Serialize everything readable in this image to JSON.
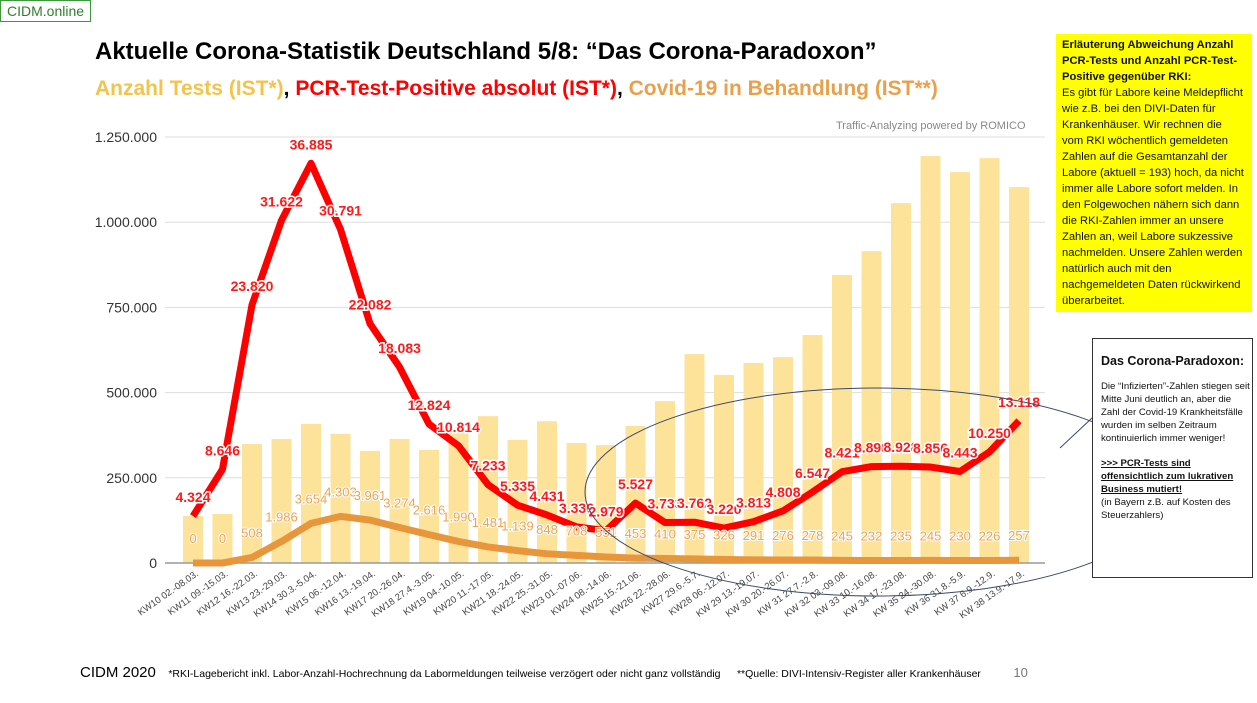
{
  "brand": "CIDM.online",
  "title": "Aktuelle Corona-Statistik Deutschland 5/8: “Das Corona-Paradoxon”",
  "subtitle": {
    "tests": "Anzahl Tests (IST*)",
    "positives": "PCR-Test-Positive absolut (IST*)",
    "treatment": "Covid-19 in Behandlung (IST**)",
    "sep": ", "
  },
  "credit": "Traffic-Analyzing powered by ROMICO",
  "note_yellow": {
    "heading": "Erläuterung Abweichung Anzahl PCR-Tests und Anzahl PCR-Test-Positive gegenüber RKI:",
    "body": "Es gibt für Labore keine Meldepflicht wie z.B. bei den DIVI-Daten für Krankenhäuser. Wir rechnen die vom RKI wöchentlich gemeldeten Zahlen auf die Gesamtanzahl der Labore (aktuell = 193) hoch, da nicht immer alle Labore sofort melden. In den Folgewochen nähern sich dann die RKI-Zahlen immer an unsere Zahlen an, weil Labore sukzessive nachmelden. Unsere Zahlen werden natürlich auch mit den nachgemeldeten Daten rückwirkend überarbeitet."
  },
  "note_box": {
    "heading": "Das Corona-Paradoxon:",
    "body": "Die “Infizierten”-Zahlen stiegen seit Mitte Juni deutlich an, aber die Zahl der Covid-19 Krankheitsfälle wurden im selben Zeitraum kontinuierlich immer weniger!",
    "emphasis": ">>> PCR-Tests sind offensichtlich zum lukrativen Business mutiert!",
    "aside": "(in Bayern z.B. auf Kosten des Steuerzahlers)"
  },
  "footer": {
    "copyright": "CIDM 2020",
    "footnote1": "*RKI-Lagebericht inkl. Labor-Anzahl-Hochrechnung da Labormeldungen teilweise verzögert oder nicht ganz vollständig",
    "footnote2": "**Quelle: DIVI-Intensiv-Register aller Krankenhäuser",
    "page": "10"
  },
  "chart_data": {
    "type": "bar+line",
    "title": "",
    "ylim": [
      0,
      1250000
    ],
    "yticks": [
      0,
      250000,
      500000,
      750000,
      1000000,
      1250000
    ],
    "ytick_labels": [
      "0",
      "250.000",
      "500.000",
      "750.000",
      "1.000.000",
      "1.250.000"
    ],
    "grid": true,
    "categories": [
      "KW10 02.-08.03.",
      "KW11 09.-15.03.",
      "KW12 16.-22.03.",
      "KW13 23.-29.03.",
      "KW14 30.3.-5.04.",
      "KW15 06.-12.04.",
      "KW16 13.-19.04.",
      "KW17 20.-26.04.",
      "KW18 27.4.-3.05.",
      "KW19 04.-10.05.",
      "KW20 11.-17.05.",
      "KW21 18.-24.05.",
      "KW22 25.-31.05.",
      "KW23 01.-07.06.",
      "KW24 08.-14.06.",
      "KW25 15.-21.06.",
      "KW26 22.-28.06.",
      "KW27 29.6.-5.7.",
      "KW28 06.-12.07.",
      "KW 29 13.-19.07.",
      "KW 30 20.-26.07.",
      "KW 31 27.7.-2.8.",
      "KW 32 03.-09.08.",
      "KW 33 10.-16.08.",
      "KW 34 17.-23.08.",
      "KW 35 24.-30.08.",
      "KW 36 31.8.-5.9.",
      "KW 37 6.9.-12.9.",
      "KW 38 13.9.-17.9."
    ],
    "series": [
      {
        "name": "Anzahl Tests (IST*)",
        "type": "bar",
        "color": "#fde39a",
        "values": [
          138000,
          144000,
          349000,
          364000,
          408000,
          379000,
          329000,
          364000,
          332000,
          390000,
          431000,
          361000,
          416000,
          352000,
          346000,
          402000,
          475000,
          613000,
          552000,
          587000,
          604000,
          669000,
          845000,
          915000,
          1056000,
          1194000,
          1147000,
          1188000,
          1103000
        ]
      },
      {
        "name": "PCR-Test-Positive absolut (IST*)",
        "type": "line",
        "color": "#ff0000",
        "secondary_axis": true,
        "values": [
          4324,
          8646,
          23820,
          31622,
          36885,
          30791,
          22082,
          18083,
          12824,
          10814,
          7233,
          5335,
          4431,
          3336,
          2979,
          5527,
          3733,
          3762,
          3220,
          3813,
          4808,
          6547,
          8421,
          8898,
          8928,
          8856,
          8443,
          10250,
          13118
        ],
        "labels": [
          "4.324",
          "8.646",
          "23.820",
          "31.622",
          "36.885",
          "30.791",
          "22.082",
          "18.083",
          "12.824",
          "10.814",
          "7.233",
          "5.335",
          "4.431",
          "3.336",
          "2.979",
          "5.527",
          "3.733",
          "3.762",
          "3.220",
          "3.813",
          "4.808",
          "6.547",
          "8.421",
          "8.898",
          "8.928",
          "8.856",
          "8.443",
          "10.250",
          "13.118"
        ]
      },
      {
        "name": "Covid-19 in Behandlung (IST**)",
        "type": "line",
        "color": "#e8963c",
        "secondary_axis": true,
        "values": [
          0,
          0,
          508,
          1986,
          3654,
          4303,
          3961,
          3274,
          2616,
          1990,
          1481,
          1139,
          848,
          708,
          551,
          453,
          410,
          375,
          326,
          291,
          276,
          278,
          245,
          232,
          235,
          245,
          230,
          226,
          257
        ],
        "labels": [
          "0",
          "0",
          "508",
          "1.986",
          "3.654",
          "4.303",
          "3.961",
          "3.274",
          "2.616",
          "1.990",
          "1.481",
          "1.139",
          "848",
          "708",
          "551",
          "453",
          "410",
          "375",
          "326",
          "291",
          "276",
          "278",
          "245",
          "232",
          "235",
          "245",
          "230",
          "226",
          "257"
        ]
      }
    ]
  }
}
